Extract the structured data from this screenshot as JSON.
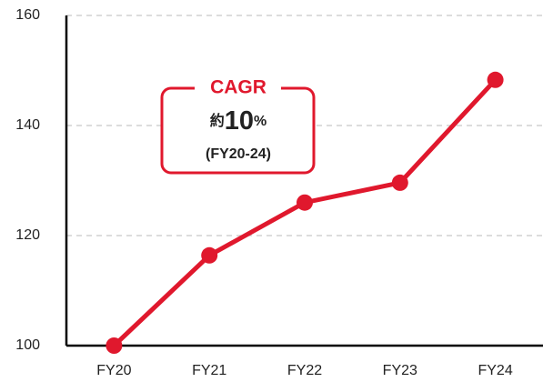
{
  "chart_data": {
    "type": "line",
    "categories": [
      "FY20",
      "FY21",
      "FY22",
      "FY23",
      "FY24"
    ],
    "series": [
      {
        "name": null,
        "color": "#e0182d",
        "values": [
          100,
          116.4,
          126,
          129.6,
          148.3
        ]
      }
    ],
    "ylim": [
      100,
      160
    ],
    "yticks": [
      100,
      120,
      140,
      160
    ],
    "grid": true,
    "annotation": {
      "title": "CAGR",
      "text": [
        "約",
        "10",
        "%"
      ],
      "period": "(FY20-24)"
    }
  }
}
